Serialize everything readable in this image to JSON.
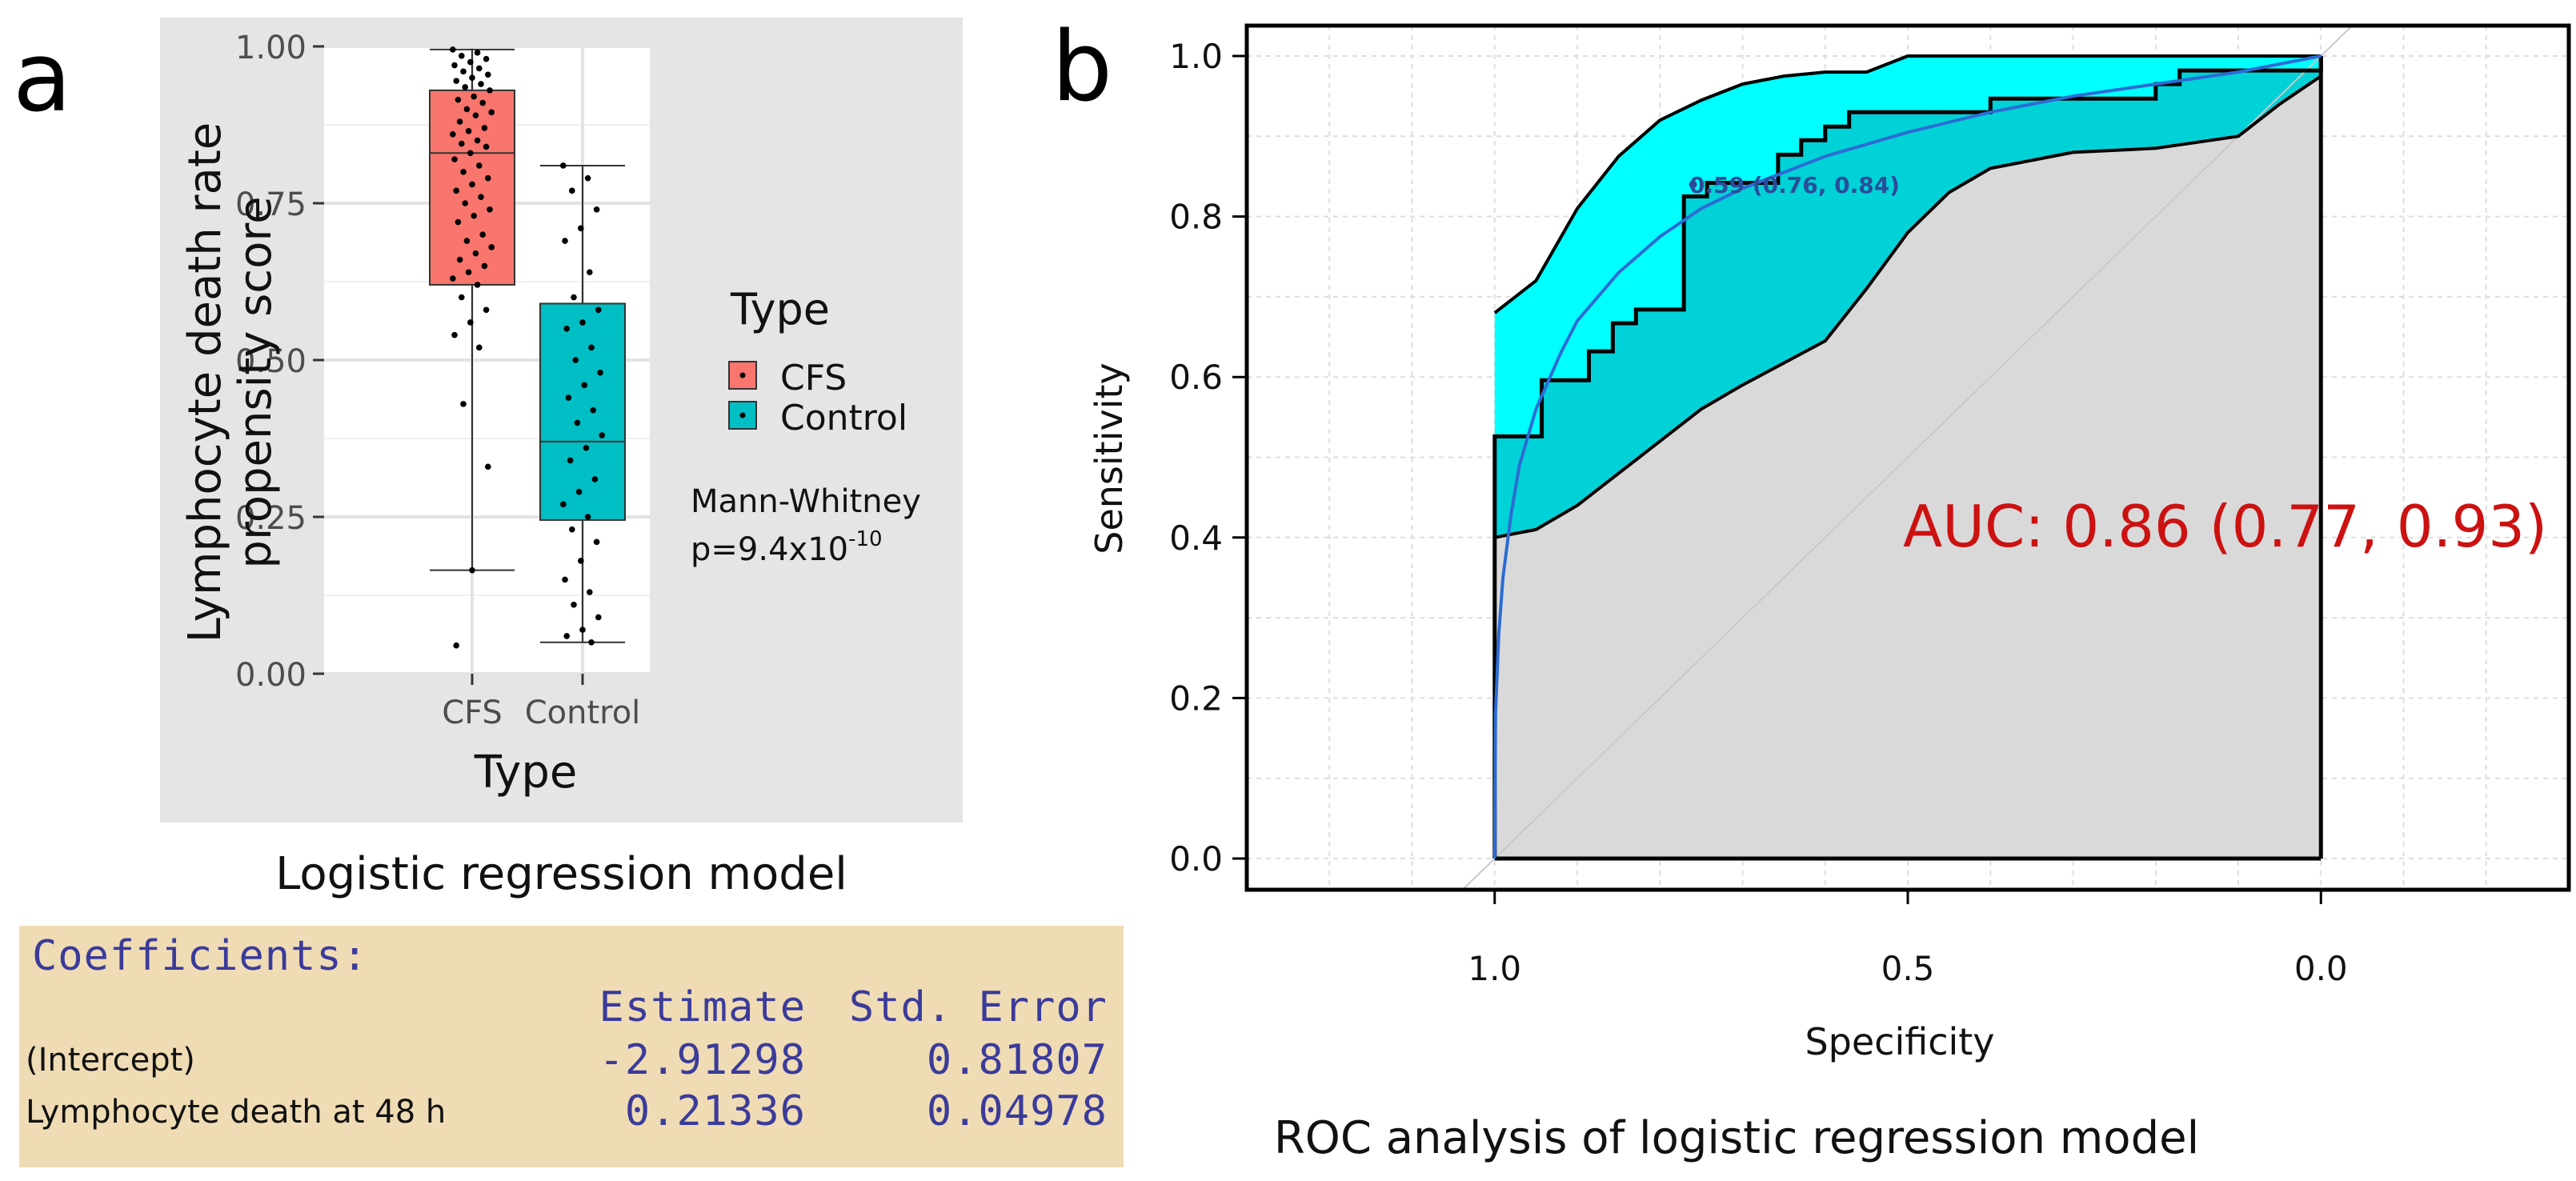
{
  "panel_a": {
    "letter": "a",
    "caption": "Logistic regression model",
    "legend_title": "Type",
    "test_name": "Mann-Whitney",
    "p_value_prefix": "p=9.4x10",
    "p_value_exponent": "-10"
  },
  "panel_b": {
    "letter": "b",
    "caption": "ROC analysis of logistic regression model",
    "threshold_label": "0.59 (0.76, 0.84)",
    "auc_text": "AUC: 0.86 (0.77, 0.93)"
  },
  "coefficients": {
    "title": "Coefficients:",
    "col_estimate": "Estimate",
    "col_std_error": "Std. Error",
    "rows": [
      {
        "label": "(Intercept)",
        "estimate": "-2.91298",
        "std_error": "0.81807"
      },
      {
        "label": "Lymphocyte death at 48 h",
        "estimate": "0.21336",
        "std_error": "0.04978"
      }
    ]
  },
  "colors": {
    "cfs": "#f8766d",
    "control": "#00bfc4",
    "roc_ci_fill": "#00ffff",
    "roc_inner_fill": "#00d2d8",
    "auc_text": "#cc1111",
    "smooth_curve": "#2b6cd4"
  },
  "chart_data": [
    {
      "type": "box",
      "title": "",
      "xlabel": "Type",
      "ylabel": "Lymphocyte death rate propensity score",
      "ylabel_lines": [
        "Lymphocyte death rate",
        "propensity score"
      ],
      "categories": [
        "CFS",
        "Control"
      ],
      "ylim": [
        0,
        1
      ],
      "yticks": [
        0,
        0.25,
        0.5,
        0.75,
        1
      ],
      "ytick_labels": [
        "0.00",
        "0.25",
        "0.50",
        "0.75",
        "1.00"
      ],
      "legend": {
        "title": "Type",
        "entries": [
          "CFS",
          "Control"
        ],
        "placement": "right"
      },
      "boxes": [
        {
          "name": "CFS",
          "min": 0.165,
          "q1": 0.62,
          "median": 0.83,
          "q3": 0.93,
          "max": 0.995
        },
        {
          "name": "Control",
          "min": 0.05,
          "q1": 0.245,
          "median": 0.37,
          "q3": 0.59,
          "max": 0.81
        }
      ],
      "points": [
        {
          "group": "CFS",
          "values": [
            0.995,
            0.99,
            0.985,
            0.98,
            0.975,
            0.97,
            0.965,
            0.96,
            0.955,
            0.95,
            0.945,
            0.94,
            0.935,
            0.93,
            0.92,
            0.915,
            0.91,
            0.9,
            0.895,
            0.89,
            0.88,
            0.87,
            0.865,
            0.86,
            0.85,
            0.845,
            0.84,
            0.83,
            0.82,
            0.81,
            0.8,
            0.79,
            0.78,
            0.77,
            0.76,
            0.75,
            0.74,
            0.73,
            0.72,
            0.7,
            0.69,
            0.68,
            0.67,
            0.66,
            0.65,
            0.64,
            0.63,
            0.62,
            0.6,
            0.58,
            0.56,
            0.54,
            0.52,
            0.43,
            0.33,
            0.165,
            0.045
          ]
        },
        {
          "group": "Control",
          "values": [
            0.81,
            0.79,
            0.77,
            0.74,
            0.71,
            0.69,
            0.64,
            0.6,
            0.58,
            0.56,
            0.55,
            0.52,
            0.5,
            0.48,
            0.46,
            0.44,
            0.42,
            0.4,
            0.38,
            0.36,
            0.34,
            0.31,
            0.29,
            0.27,
            0.25,
            0.23,
            0.21,
            0.18,
            0.15,
            0.13,
            0.11,
            0.09,
            0.07,
            0.06,
            0.05
          ]
        }
      ]
    },
    {
      "type": "line",
      "title": "",
      "xlabel": "Specificity",
      "ylabel": "Sensitivity",
      "xlim": [
        1.3,
        -0.3
      ],
      "ylim": [
        0,
        1
      ],
      "xticks": [
        1.0,
        0.5,
        0.0
      ],
      "xtick_labels": [
        "1.0",
        "0.5",
        "0.0"
      ],
      "yticks": [
        0,
        0.2,
        0.4,
        0.6,
        0.8,
        1.0
      ],
      "ytick_labels": [
        "0.0",
        "0.2",
        "0.4",
        "0.6",
        "0.8",
        "1.0"
      ],
      "auc": 0.86,
      "auc_ci": [
        0.77,
        0.93
      ],
      "best_threshold": {
        "threshold": 0.59,
        "specificity": 0.76,
        "sensitivity": 0.84
      },
      "series": [
        {
          "name": "ROC",
          "style": "step",
          "specificity": [
            1.0,
            1.0,
            0.943,
            0.943,
            0.943,
            0.943,
            0.886,
            0.886,
            0.857,
            0.857,
            0.829,
            0.829,
            0.771,
            0.771,
            0.743,
            0.743,
            0.657,
            0.657,
            0.629,
            0.629,
            0.6,
            0.6,
            0.571,
            0.571,
            0.486,
            0.486,
            0.4,
            0.4,
            0.371,
            0.371,
            0.286,
            0.286,
            0.2,
            0.2,
            0.171,
            0.171,
            0.0,
            0.0
          ],
          "sensitivity": [
            0.0,
            0.526,
            0.526,
            0.561,
            0.596,
            0.596,
            0.596,
            0.632,
            0.632,
            0.667,
            0.667,
            0.684,
            0.684,
            0.825,
            0.825,
            0.842,
            0.842,
            0.877,
            0.877,
            0.895,
            0.895,
            0.912,
            0.912,
            0.93,
            0.93,
            0.93,
            0.93,
            0.947,
            0.947,
            0.947,
            0.947,
            0.947,
            0.947,
            0.965,
            0.965,
            0.982,
            0.982,
            1.0
          ]
        },
        {
          "name": "CI upper",
          "specificity": [
            1.0,
            1.0,
            0.95,
            0.9,
            0.85,
            0.8,
            0.75,
            0.7,
            0.65,
            0.6,
            0.55,
            0.5,
            0.4,
            0.3,
            0.2,
            0.1,
            0.0
          ],
          "sensitivity": [
            0.0,
            0.68,
            0.72,
            0.81,
            0.875,
            0.92,
            0.945,
            0.965,
            0.975,
            0.98,
            0.98,
            1.0,
            1.0,
            1.0,
            1.0,
            1.0,
            1.0
          ]
        },
        {
          "name": "CI lower",
          "specificity": [
            1.0,
            1.0,
            0.95,
            0.9,
            0.85,
            0.8,
            0.75,
            0.7,
            0.6,
            0.55,
            0.5,
            0.45,
            0.4,
            0.3,
            0.2,
            0.1,
            0.05,
            0.0
          ],
          "sensitivity": [
            0.0,
            0.4,
            0.41,
            0.44,
            0.48,
            0.52,
            0.56,
            0.59,
            0.645,
            0.71,
            0.78,
            0.83,
            0.86,
            0.88,
            0.885,
            0.9,
            0.94,
            0.975
          ]
        },
        {
          "name": "Smoothed ROC",
          "specificity": [
            1.0,
            0.999,
            0.995,
            0.99,
            0.98,
            0.97,
            0.95,
            0.92,
            0.9,
            0.85,
            0.8,
            0.75,
            0.7,
            0.6,
            0.5,
            0.4,
            0.3,
            0.2,
            0.1,
            0.05,
            0.0
          ],
          "sensitivity": [
            0.0,
            0.18,
            0.28,
            0.35,
            0.43,
            0.49,
            0.56,
            0.63,
            0.67,
            0.73,
            0.775,
            0.81,
            0.835,
            0.875,
            0.905,
            0.93,
            0.95,
            0.965,
            0.98,
            0.99,
            1.0
          ]
        },
        {
          "name": "Chance",
          "specificity": [
            1.3,
            -0.3
          ],
          "sensitivity": [
            -0.3,
            1.3
          ]
        }
      ]
    }
  ]
}
